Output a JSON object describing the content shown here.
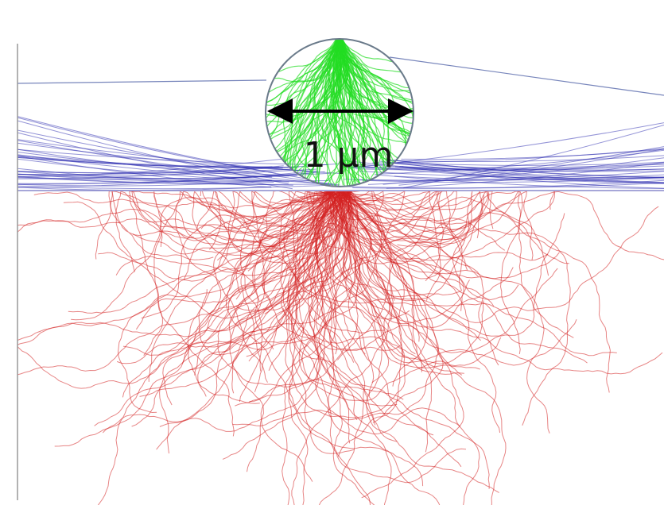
{
  "scale_label": "1 μm"
}
